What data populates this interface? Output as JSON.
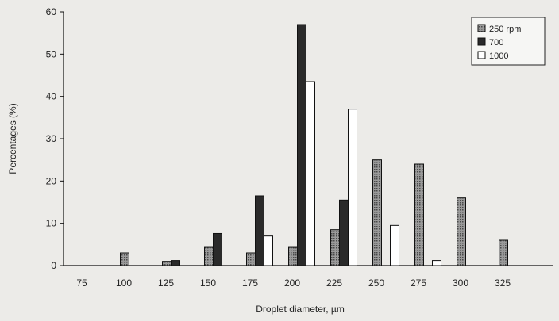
{
  "chart_data": {
    "type": "bar",
    "xlabel": "Droplet diameter, µm",
    "ylabel": "Percentages (%)",
    "ylim": [
      0,
      60
    ],
    "yticks": [
      "0",
      "10",
      "20",
      "30",
      "40",
      "50",
      "60"
    ],
    "categories": [
      "75",
      "100",
      "125",
      "150",
      "175",
      "200",
      "225",
      "250",
      "275",
      "300",
      "325"
    ],
    "grid": false,
    "legend_position": "top-right",
    "series": [
      {
        "name": "250 rpm",
        "color": "#8c8c8c",
        "pattern": "dotted",
        "values": [
          0,
          3,
          1,
          4.3,
          3,
          4.3,
          8.5,
          25,
          24,
          16,
          6
        ]
      },
      {
        "name": "700",
        "color": "#2a2a2a",
        "pattern": "solid",
        "values": [
          0,
          0,
          1.2,
          7.6,
          16.5,
          57,
          15.5,
          0,
          0,
          0,
          0
        ]
      },
      {
        "name": "1000",
        "color": "#ffffff",
        "pattern": "outline",
        "values": [
          0,
          0,
          0,
          0,
          7,
          43.5,
          37,
          9.5,
          1.2,
          0,
          0
        ]
      }
    ]
  }
}
